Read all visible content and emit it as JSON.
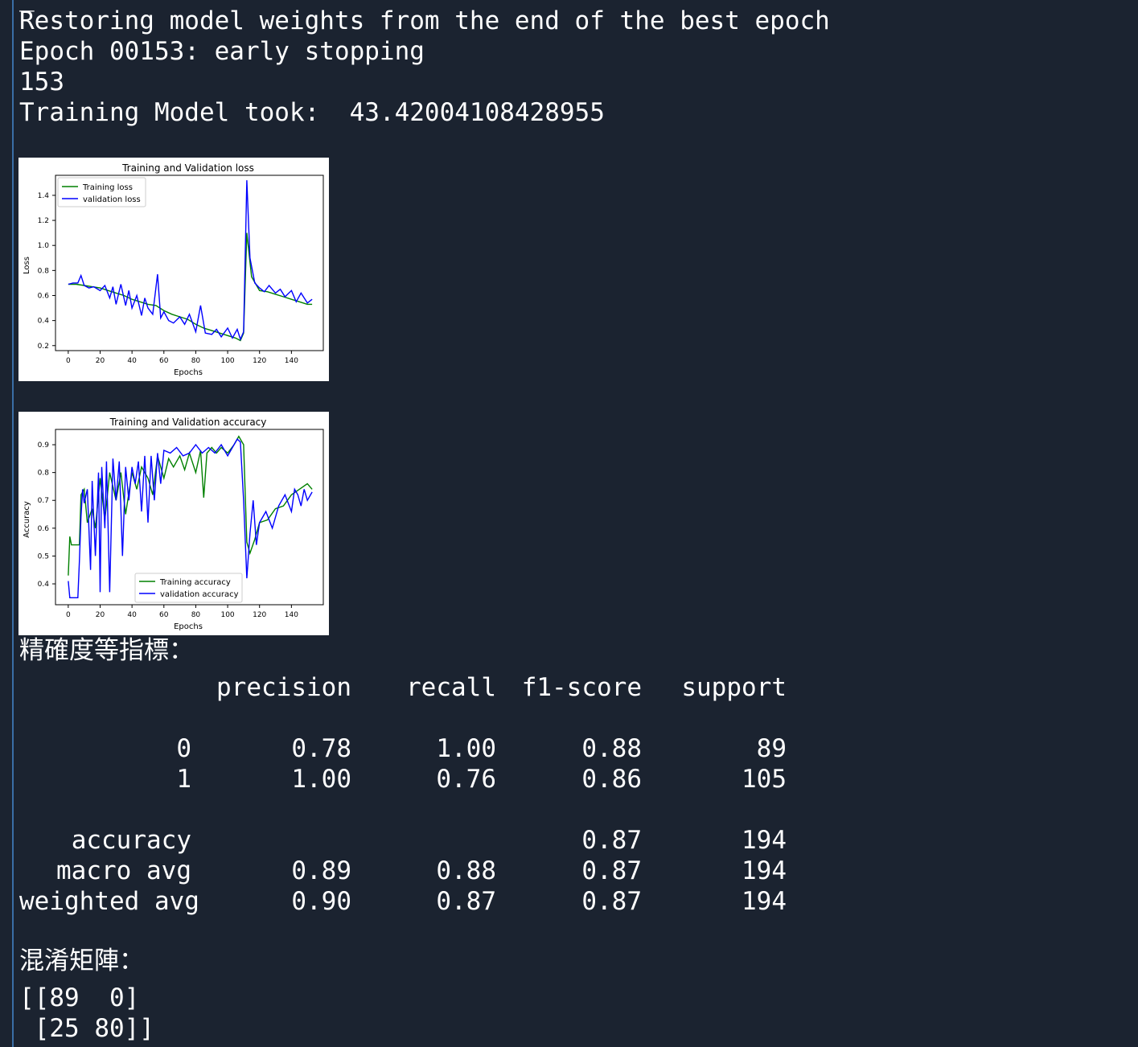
{
  "console": {
    "top_fragment": "_",
    "lines": [
      "Restoring model weights from the end of the best epoch",
      "Epoch 00153: early stopping",
      "153",
      "Training Model took:  43.42004108428955"
    ]
  },
  "loss_chart_text": {
    "title": "Training and Validation loss",
    "xlabel": "Epochs",
    "ylabel": "Loss",
    "legend": [
      "Training loss",
      "validation loss"
    ]
  },
  "acc_chart_text": {
    "title": "Training and Validation accuracy",
    "xlabel": "Epochs",
    "ylabel": "Accuracy",
    "legend": [
      "Training accuracy",
      "validation accuracy"
    ]
  },
  "chart_data": [
    {
      "type": "line",
      "title": "Training and Validation loss",
      "xlabel": "Epochs",
      "ylabel": "Loss",
      "xlim": [
        -8,
        160
      ],
      "ylim": [
        0.16,
        1.56
      ],
      "xticks": [
        0,
        20,
        40,
        60,
        80,
        100,
        120,
        140
      ],
      "yticks": [
        0.2,
        0.4,
        0.6,
        0.8,
        1.0,
        1.2,
        1.4
      ],
      "legend_position": "upper-left",
      "colors": {
        "train": "#008000",
        "val": "#0000ff"
      },
      "series": [
        {
          "name": "Training loss",
          "x": [
            0,
            5,
            10,
            15,
            20,
            25,
            30,
            35,
            40,
            45,
            50,
            55,
            60,
            65,
            70,
            75,
            80,
            85,
            90,
            95,
            100,
            105,
            108,
            110,
            112,
            115,
            120,
            125,
            130,
            135,
            140,
            145,
            150,
            153
          ],
          "values": [
            0.69,
            0.69,
            0.68,
            0.67,
            0.66,
            0.64,
            0.62,
            0.6,
            0.57,
            0.55,
            0.53,
            0.52,
            0.48,
            0.45,
            0.43,
            0.41,
            0.37,
            0.34,
            0.32,
            0.3,
            0.28,
            0.26,
            0.24,
            0.3,
            1.1,
            0.75,
            0.64,
            0.63,
            0.61,
            0.59,
            0.57,
            0.55,
            0.53,
            0.53
          ]
        },
        {
          "name": "validation loss",
          "x": [
            0,
            3,
            6,
            8,
            10,
            13,
            16,
            20,
            23,
            26,
            28,
            30,
            33,
            36,
            38,
            40,
            43,
            46,
            48,
            50,
            53,
            56,
            58,
            60,
            63,
            66,
            70,
            73,
            76,
            80,
            83,
            86,
            90,
            93,
            96,
            100,
            103,
            106,
            108,
            110,
            112,
            114,
            117,
            120,
            123,
            126,
            130,
            133,
            136,
            140,
            143,
            146,
            150,
            153
          ],
          "values": [
            0.69,
            0.7,
            0.7,
            0.76,
            0.68,
            0.66,
            0.67,
            0.64,
            0.68,
            0.58,
            0.67,
            0.53,
            0.69,
            0.52,
            0.64,
            0.5,
            0.6,
            0.44,
            0.58,
            0.5,
            0.45,
            0.77,
            0.42,
            0.47,
            0.4,
            0.38,
            0.43,
            0.37,
            0.45,
            0.31,
            0.52,
            0.3,
            0.29,
            0.33,
            0.27,
            0.34,
            0.26,
            0.33,
            0.25,
            0.31,
            1.52,
            0.9,
            0.7,
            0.66,
            0.63,
            0.68,
            0.62,
            0.65,
            0.59,
            0.64,
            0.55,
            0.62,
            0.54,
            0.57
          ]
        }
      ]
    },
    {
      "type": "line",
      "title": "Training and Validation accuracy",
      "xlabel": "Epochs",
      "ylabel": "Accuracy",
      "xlim": [
        -8,
        160
      ],
      "ylim": [
        0.325,
        0.955
      ],
      "xticks": [
        0,
        20,
        40,
        60,
        80,
        100,
        120,
        140
      ],
      "yticks": [
        0.4,
        0.5,
        0.6,
        0.7,
        0.8,
        0.9
      ],
      "legend_position": "lower-center",
      "colors": {
        "train": "#008000",
        "val": "#0000ff"
      },
      "series": [
        {
          "name": "Training accuracy",
          "x": [
            0,
            1,
            2,
            4,
            7,
            8,
            10,
            12,
            15,
            17,
            20,
            23,
            26,
            30,
            33,
            36,
            40,
            43,
            46,
            50,
            53,
            56,
            60,
            63,
            66,
            70,
            73,
            76,
            80,
            83,
            85,
            87,
            90,
            93,
            96,
            100,
            104,
            107,
            110,
            112,
            114,
            117,
            120,
            125,
            130,
            135,
            140,
            145,
            150,
            153
          ],
          "values": [
            0.43,
            0.57,
            0.54,
            0.54,
            0.54,
            0.72,
            0.74,
            0.62,
            0.67,
            0.6,
            0.78,
            0.63,
            0.8,
            0.7,
            0.8,
            0.65,
            0.8,
            0.74,
            0.82,
            0.78,
            0.72,
            0.86,
            0.78,
            0.85,
            0.82,
            0.86,
            0.81,
            0.87,
            0.8,
            0.88,
            0.71,
            0.87,
            0.89,
            0.87,
            0.89,
            0.87,
            0.9,
            0.93,
            0.9,
            0.55,
            0.51,
            0.56,
            0.62,
            0.63,
            0.67,
            0.68,
            0.72,
            0.74,
            0.76,
            0.74
          ]
        },
        {
          "name": "validation accuracy",
          "x": [
            0,
            1,
            3,
            6,
            7,
            8,
            9,
            10,
            12,
            14,
            15,
            17,
            19,
            20,
            21,
            23,
            24,
            26,
            28,
            30,
            32,
            34,
            36,
            38,
            40,
            42,
            44,
            46,
            48,
            50,
            52,
            54,
            56,
            58,
            60,
            64,
            68,
            72,
            76,
            80,
            84,
            88,
            92,
            96,
            100,
            104,
            106,
            108,
            110,
            112,
            114,
            116,
            118,
            120,
            124,
            128,
            132,
            136,
            140,
            142,
            144,
            146,
            148,
            150,
            153
          ],
          "values": [
            0.41,
            0.35,
            0.35,
            0.35,
            0.48,
            0.64,
            0.74,
            0.69,
            0.74,
            0.45,
            0.77,
            0.5,
            0.8,
            0.37,
            0.82,
            0.6,
            0.84,
            0.37,
            0.85,
            0.7,
            0.84,
            0.5,
            0.82,
            0.7,
            0.82,
            0.76,
            0.84,
            0.66,
            0.86,
            0.62,
            0.86,
            0.7,
            0.87,
            0.76,
            0.88,
            0.87,
            0.89,
            0.86,
            0.87,
            0.9,
            0.87,
            0.89,
            0.87,
            0.9,
            0.86,
            0.9,
            0.92,
            0.91,
            0.7,
            0.42,
            0.58,
            0.7,
            0.54,
            0.62,
            0.66,
            0.6,
            0.68,
            0.72,
            0.66,
            0.74,
            0.72,
            0.68,
            0.74,
            0.7,
            0.73
          ]
        }
      ]
    }
  ],
  "report": {
    "heading": "精確度等指標：",
    "columns": [
      "precision",
      "recall",
      "f1-score",
      "support"
    ],
    "rows": [
      {
        "label": "0",
        "precision": "0.78",
        "recall": "1.00",
        "f1": "0.88",
        "support": "89"
      },
      {
        "label": "1",
        "precision": "1.00",
        "recall": "0.76",
        "f1": "0.86",
        "support": "105"
      },
      {
        "label": "accuracy",
        "precision": "",
        "recall": "",
        "f1": "0.87",
        "support": "194"
      },
      {
        "label": "macro avg",
        "precision": "0.89",
        "recall": "0.88",
        "f1": "0.87",
        "support": "194"
      },
      {
        "label": "weighted avg",
        "precision": "0.90",
        "recall": "0.87",
        "f1": "0.87",
        "support": "194"
      }
    ]
  },
  "confusion": {
    "heading": "混淆矩陣：",
    "lines": [
      "[[89  0]",
      " [25 80]]"
    ]
  }
}
